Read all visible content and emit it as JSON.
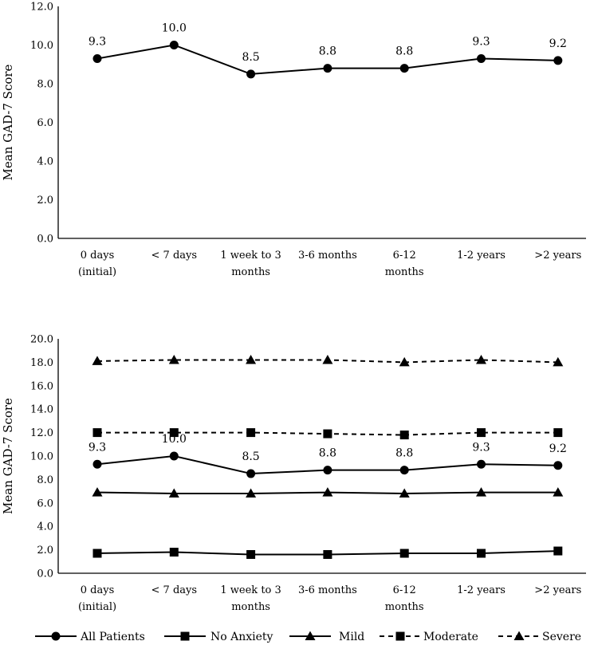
{
  "chart_data": [
    {
      "type": "line",
      "title": "",
      "xlabel": "",
      "ylabel": "Mean GAD-7 Score",
      "ylim": [
        0,
        12
      ],
      "yticks": [
        "0.0",
        "2.0",
        "4.0",
        "6.0",
        "8.0",
        "10.0",
        "12.0"
      ],
      "categories": [
        [
          "0 days",
          "(initial)"
        ],
        [
          "< 7 days"
        ],
        [
          "1 week to 3",
          "months"
        ],
        [
          "3-6 months"
        ],
        [
          "6-12",
          "months"
        ],
        [
          "1-2 years"
        ],
        [
          ">2 years"
        ]
      ],
      "grid": false,
      "series": [
        {
          "name": "All Patients",
          "values": [
            9.3,
            10.0,
            8.5,
            8.8,
            8.8,
            9.3,
            9.2
          ],
          "data_labels": [
            "9.3",
            "10.0",
            "8.5",
            "8.8",
            "8.8",
            "9.3",
            "9.2"
          ],
          "marker": "circle",
          "dashed": false
        }
      ]
    },
    {
      "type": "line",
      "title": "",
      "xlabel": "",
      "ylabel": "Mean GAD-7 Score",
      "ylim": [
        0,
        20
      ],
      "yticks": [
        "0.0",
        "2.0",
        "4.0",
        "6.0",
        "8.0",
        "10.0",
        "12.0",
        "14.0",
        "16.0",
        "18.0",
        "20.0"
      ],
      "categories": [
        [
          "0 days",
          "(initial)"
        ],
        [
          "< 7 days"
        ],
        [
          "1 week to 3",
          "months"
        ],
        [
          "3-6 months"
        ],
        [
          "6-12",
          "months"
        ],
        [
          "1-2 years"
        ],
        [
          ">2 years"
        ]
      ],
      "grid": false,
      "legend": "bottom",
      "series": [
        {
          "name": "All Patients",
          "values": [
            9.3,
            10.0,
            8.5,
            8.8,
            8.8,
            9.3,
            9.2
          ],
          "data_labels": [
            "9.3",
            "10.0",
            "8.5",
            "8.8",
            "8.8",
            "9.3",
            "9.2"
          ],
          "marker": "circle",
          "dashed": false
        },
        {
          "name": "No Anxiety",
          "values": [
            1.7,
            1.8,
            1.6,
            1.6,
            1.7,
            1.7,
            1.9
          ],
          "marker": "square",
          "dashed": false
        },
        {
          "name": "Mild",
          "values": [
            6.9,
            6.8,
            6.8,
            6.9,
            6.8,
            6.9,
            6.9
          ],
          "marker": "triangle",
          "dashed": false
        },
        {
          "name": "Moderate",
          "values": [
            12.0,
            12.0,
            12.0,
            11.9,
            11.8,
            12.0,
            12.0
          ],
          "marker": "square",
          "dashed": true
        },
        {
          "name": "Severe",
          "values": [
            18.1,
            18.2,
            18.2,
            18.2,
            18.0,
            18.2,
            18.0
          ],
          "marker": "triangle",
          "dashed": true
        }
      ]
    }
  ]
}
